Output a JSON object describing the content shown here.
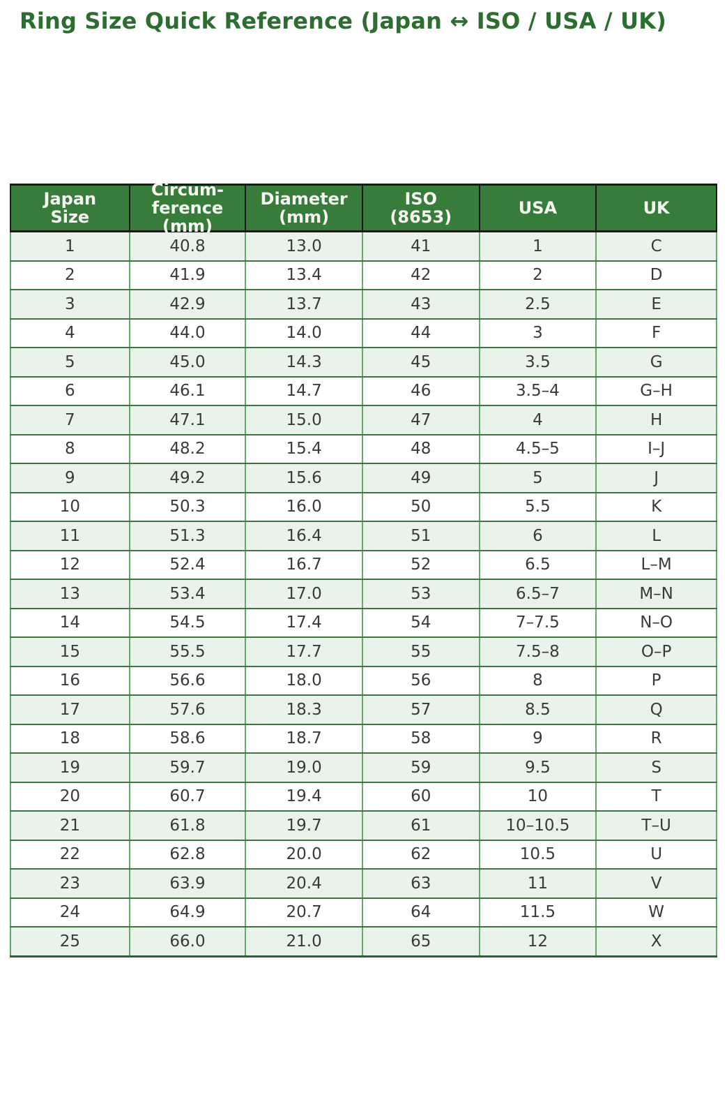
{
  "title": "Ring Size Quick Reference (Japan ↔ ISO / USA / UK)",
  "colors": {
    "title_text": "#2b6e2f",
    "header_bg": "#387c3c",
    "header_text": "#f6f6f1",
    "stripe_row_bg": "#e9f3ea",
    "plain_row_bg": "#ffffff",
    "row_line": "#3f7343",
    "column_line": "#66a869",
    "header_frame": "#1a1a1a",
    "bottom_frame": "#2c5f31",
    "cell_text": "#3a3a3a"
  },
  "table": {
    "display_headers": [
      "Japan\nSize",
      "Circum-\nference\n(mm)",
      "Diameter\n(mm)",
      "ISO\n(8653)",
      "USA",
      "UK"
    ],
    "column_keys": [
      "japan-size",
      "circumference-mm",
      "diameter-mm",
      "iso-8653",
      "usa",
      "uk"
    ]
  },
  "chart_data": {
    "type": "table",
    "title": "Ring Size Quick Reference (Japan ↔ ISO / USA / UK)",
    "columns": [
      "Japan Size",
      "Circumference (mm)",
      "Diameter (mm)",
      "ISO (8653)",
      "USA",
      "UK"
    ],
    "rows": [
      [
        "1",
        "40.8",
        "13.0",
        "41",
        "1",
        "C"
      ],
      [
        "2",
        "41.9",
        "13.4",
        "42",
        "2",
        "D"
      ],
      [
        "3",
        "42.9",
        "13.7",
        "43",
        "2.5",
        "E"
      ],
      [
        "4",
        "44.0",
        "14.0",
        "44",
        "3",
        "F"
      ],
      [
        "5",
        "45.0",
        "14.3",
        "45",
        "3.5",
        "G"
      ],
      [
        "6",
        "46.1",
        "14.7",
        "46",
        "3.5–4",
        "G–H"
      ],
      [
        "7",
        "47.1",
        "15.0",
        "47",
        "4",
        "H"
      ],
      [
        "8",
        "48.2",
        "15.4",
        "48",
        "4.5–5",
        "I–J"
      ],
      [
        "9",
        "49.2",
        "15.6",
        "49",
        "5",
        "J"
      ],
      [
        "10",
        "50.3",
        "16.0",
        "50",
        "5.5",
        "K"
      ],
      [
        "11",
        "51.3",
        "16.4",
        "51",
        "6",
        "L"
      ],
      [
        "12",
        "52.4",
        "16.7",
        "52",
        "6.5",
        "L–M"
      ],
      [
        "13",
        "53.4",
        "17.0",
        "53",
        "6.5–7",
        "M–N"
      ],
      [
        "14",
        "54.5",
        "17.4",
        "54",
        "7–7.5",
        "N–O"
      ],
      [
        "15",
        "55.5",
        "17.7",
        "55",
        "7.5–8",
        "O–P"
      ],
      [
        "16",
        "56.6",
        "18.0",
        "56",
        "8",
        "P"
      ],
      [
        "17",
        "57.6",
        "18.3",
        "57",
        "8.5",
        "Q"
      ],
      [
        "18",
        "58.6",
        "18.7",
        "58",
        "9",
        "R"
      ],
      [
        "19",
        "59.7",
        "19.0",
        "59",
        "9.5",
        "S"
      ],
      [
        "20",
        "60.7",
        "19.4",
        "60",
        "10",
        "T"
      ],
      [
        "21",
        "61.8",
        "19.7",
        "61",
        "10–10.5",
        "T–U"
      ],
      [
        "22",
        "62.8",
        "20.0",
        "62",
        "10.5",
        "U"
      ],
      [
        "23",
        "63.9",
        "20.4",
        "63",
        "11",
        "V"
      ],
      [
        "24",
        "64.9",
        "20.7",
        "64",
        "11.5",
        "W"
      ],
      [
        "25",
        "66.0",
        "21.0",
        "65",
        "12",
        "X"
      ]
    ]
  }
}
